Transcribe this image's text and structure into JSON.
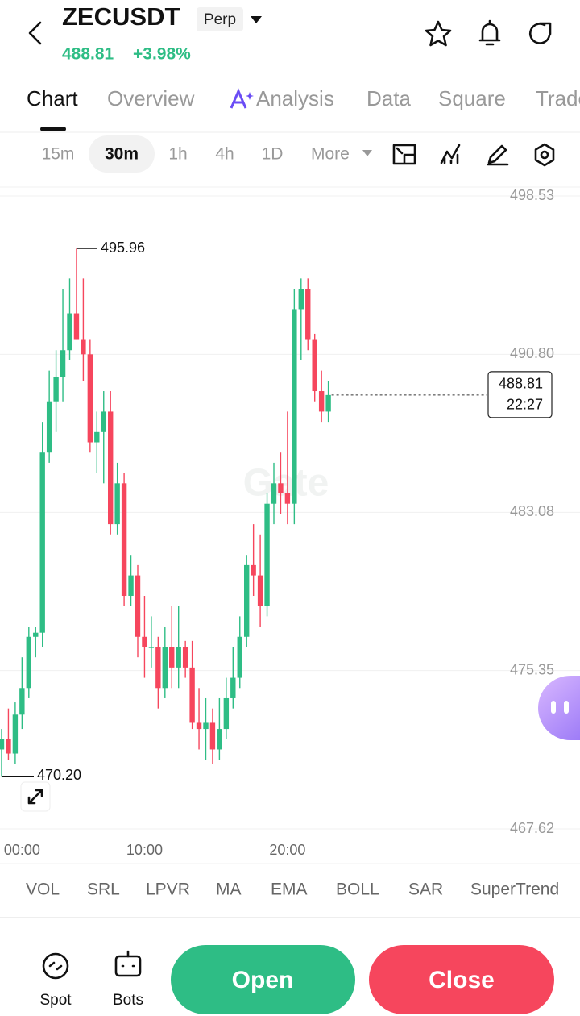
{
  "header": {
    "symbol": "ZECUSDT",
    "badge": "Perp",
    "change": "+3.98%"
  },
  "tabs": [
    "Chart",
    "Overview",
    "Analysis",
    "Data",
    "Square",
    "Trade"
  ],
  "intervals": [
    "15m",
    "30m",
    "1h",
    "4h",
    "1D",
    "More"
  ],
  "chart_data": {
    "type": "candlestick",
    "open": [
      471.5,
      472.0,
      471.3,
      473.2,
      474.5,
      477.0,
      477.2,
      486.0,
      488.5,
      489.7,
      491.0,
      492.8,
      491.5,
      490.8,
      486.5,
      487.0,
      488.0,
      482.5,
      484.5,
      479.0,
      480.0,
      477.0,
      476.5,
      476.5,
      474.5,
      476.5,
      475.5,
      476.5,
      475.5,
      472.8,
      472.5,
      472.8,
      471.5,
      472.5,
      474.0,
      475.0,
      477.0,
      480.5,
      480.0,
      478.5,
      483.5,
      484.5,
      484.0,
      483.5,
      493.0,
      494.0,
      491.5,
      489.0,
      488.0
    ],
    "high": [
      472.5,
      473.5,
      473.8,
      476.0,
      477.5,
      477.5,
      487.5,
      490.0,
      491.0,
      494.0,
      494.5,
      495.96,
      494.5,
      491.5,
      488.0,
      489.0,
      489.0,
      485.5,
      485.0,
      481.0,
      480.5,
      479.0,
      478.0,
      477.0,
      477.5,
      478.5,
      478.5,
      476.8,
      476.8,
      474.5,
      474.0,
      473.5,
      474.0,
      475.0,
      476.5,
      478.0,
      481.0,
      482.5,
      482.0,
      484.0,
      485.5,
      486.0,
      488.0,
      494.0,
      494.5,
      494.5,
      491.8,
      490.0,
      489.5
    ],
    "low": [
      470.2,
      471.0,
      470.8,
      472.5,
      474.0,
      476.0,
      476.5,
      485.5,
      487.0,
      488.5,
      490.5,
      491.5,
      489.5,
      486.0,
      485.0,
      484.5,
      482.0,
      482.0,
      478.5,
      478.5,
      476.0,
      475.0,
      475.5,
      473.5,
      474.0,
      474.5,
      474.5,
      475.0,
      472.5,
      471.5,
      471.0,
      470.8,
      471.0,
      472.0,
      473.5,
      474.5,
      476.5,
      479.0,
      477.5,
      478.0,
      482.5,
      483.0,
      482.5,
      482.5,
      490.5,
      491.0,
      488.5,
      487.5,
      487.5
    ],
    "close": [
      472.0,
      471.3,
      473.2,
      474.5,
      477.0,
      477.2,
      486.0,
      488.5,
      489.7,
      491.0,
      492.8,
      491.5,
      490.8,
      486.5,
      487.0,
      488.0,
      482.5,
      484.5,
      479.0,
      480.0,
      477.0,
      476.5,
      476.5,
      474.5,
      476.5,
      475.5,
      476.5,
      475.5,
      472.8,
      472.5,
      472.8,
      471.5,
      472.5,
      474.0,
      475.0,
      477.0,
      480.5,
      480.0,
      478.5,
      483.5,
      484.5,
      484.0,
      483.5,
      493.0,
      494.0,
      491.5,
      489.0,
      488.0,
      488.81
    ],
    "up_color": "#2ebd85",
    "down_color": "#f6465d",
    "ylim": [
      467.62,
      498.53
    ],
    "yticks": [
      498.53,
      {
        "value": 490.8,
        "label": "490.80"
      },
      483.08,
      475.35,
      467.62
    ],
    "xticks": [
      {
        "value": 3,
        "label": "00:00"
      },
      {
        "value": 21,
        "label": "10:00"
      },
      {
        "value": 42,
        "label": "20:00"
      }
    ],
    "low_label": "470.20",
    "countdown": "22:27",
    "watermark": "Gate",
    "grid": true
  },
  "indicators": [
    "VOL",
    "SRL",
    "LPVR",
    "MA",
    "EMA",
    "BOLL",
    "SAR",
    "SuperTrend"
  ],
  "bottom": {
    "spot": "Spot",
    "bots": "Bots",
    "open": "Open",
    "close": "Close"
  }
}
